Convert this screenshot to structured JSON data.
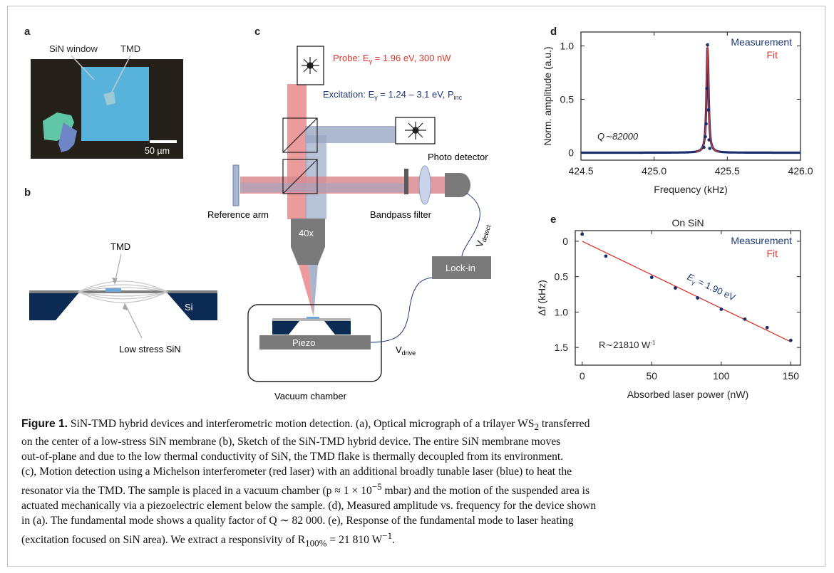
{
  "panels": {
    "a": {
      "letter": "a",
      "sin_window_label": "SiN window",
      "tmd_label": "TMD",
      "scalebar_label": "50 µm"
    },
    "b": {
      "letter": "b",
      "tmd_label": "TMD",
      "si_label": "Si",
      "sin_label": "Low stress SiN"
    },
    "c": {
      "letter": "c",
      "probe_label": "Probe: E",
      "probe_sub": "γ",
      "probe_rest": " = 1.96 eV, 300 nW",
      "exc_label": "Excitation: E",
      "exc_sub": "γ",
      "exc_rest": " = 1.24 – 3.1 eV, P",
      "exc_sub2": "inc",
      "photodetector": "Photo detector",
      "reference_arm": "Reference arm",
      "bandpass": "Bandpass filter",
      "objective": "40x",
      "lockin": "Lock-in",
      "piezo": "Piezo",
      "vacuum": "Vacuum chamber",
      "vdrive": "V",
      "vdrive_sub": "drive",
      "vdetect": "V",
      "vdetect_sub": "detect"
    },
    "d": {
      "letter": "d",
      "q_label": "Q∼82000"
    },
    "e": {
      "letter": "e",
      "annot": "E",
      "annot_sub": "γ",
      "annot_rest": " = 1.90 eV",
      "r_label": "R∼21810 W",
      "r_sup": "-1"
    }
  },
  "chart_data": [
    {
      "type": "line",
      "panel": "d",
      "title": "",
      "xlabel": "Frequency (kHz)",
      "ylabel": "Norm. amplitude (a.u.)",
      "xlim": [
        424.5,
        426.0
      ],
      "ylim": [
        -0.07,
        1.13
      ],
      "xticks": [
        424.5,
        425.0,
        425.5,
        426.0
      ],
      "xtick_labels": [
        "424.5",
        "425.0",
        "425.5",
        "426.0"
      ],
      "yticks": [
        0,
        0.5,
        1.0
      ],
      "ytick_labels": [
        "0",
        "0.5",
        "1.0"
      ],
      "legend": [
        "Measurement",
        "Fit"
      ],
      "legend_position": "top-right",
      "series": [
        {
          "name": "Measurement",
          "color": "#1a2e6e",
          "kind": "scatter",
          "x": [
            425.34,
            425.35,
            425.355,
            425.36,
            425.365,
            425.37,
            425.375,
            425.38
          ],
          "y": [
            0.05,
            0.15,
            0.27,
            0.6,
            1.01,
            0.4,
            0.12,
            0.04
          ]
        },
        {
          "name": "Fit",
          "color": "#d9382f",
          "kind": "lorentzian",
          "center": 425.365,
          "width": 0.008
        }
      ]
    },
    {
      "type": "scatter",
      "panel": "e",
      "title": "On SiN",
      "xlabel": "Absorbed laser power (nW)",
      "ylabel": "Δf (kHz)",
      "xlim": [
        -5,
        157
      ],
      "ylim": [
        -0.15,
        1.75
      ],
      "y_inverted": true,
      "xticks": [
        0,
        50,
        100,
        150
      ],
      "xtick_labels": [
        "0",
        "50",
        "100",
        "150"
      ],
      "yticks": [
        0,
        0.5,
        1.0,
        1.5
      ],
      "ytick_labels": [
        "0",
        "0.5",
        "1.0",
        "1.5"
      ],
      "legend": [
        "Measurement",
        "Fit"
      ],
      "legend_position": "top-right",
      "series": [
        {
          "name": "Measurement",
          "color": "#1a2e6e",
          "x": [
            0,
            17,
            50,
            67,
            83,
            100,
            117,
            133,
            150
          ],
          "y": [
            -0.1,
            0.21,
            0.51,
            0.66,
            0.8,
            0.96,
            1.1,
            1.22,
            1.4
          ]
        },
        {
          "name": "Fit",
          "color": "#d9382f",
          "kind": "linear",
          "x": [
            0,
            150
          ],
          "y": [
            0.0,
            1.42
          ]
        }
      ]
    }
  ],
  "caption": {
    "lead": "Figure 1.",
    "line1": " SiN-TMD hybrid devices and interferometric motion detection. (a), Optical micrograph of a trilayer WS",
    "line1_sub": "2",
    "line1_end": " transferred",
    "line2": "on the center of a low-stress SiN membrane (b), Sketch of the SiN-TMD hybrid device. The entire SiN membrane moves",
    "line3": "out-of-plane and due to the low thermal conductivity of SiN, the TMD flake is thermally decoupled from its environment.",
    "line4": "(c), Motion detection using a Michelson interferometer (red laser) with an additional broadly tunable laser (blue) to heat the",
    "line5": "resonator via the TMD. The sample is placed in a vacuum chamber (p ≈ 1 × 10",
    "line5_sup": "−5",
    "line5_end": " mbar) and the motion of the suspended area is",
    "line6": "actuated mechanically via a piezoelectric element below the sample. (d), Measured amplitude vs. frequency for the device shown",
    "line7": "in (a). The fundamental mode shows a quality factor of Q ∼ 82 000. (e), Response of the fundamental mode to laser heating",
    "line8": "(excitation focused on SiN area). We extract a responsivity of R",
    "line8_sub": "100%",
    "line8_mid": " = 21 810 W",
    "line8_sup": "−1",
    "line8_end": "."
  }
}
